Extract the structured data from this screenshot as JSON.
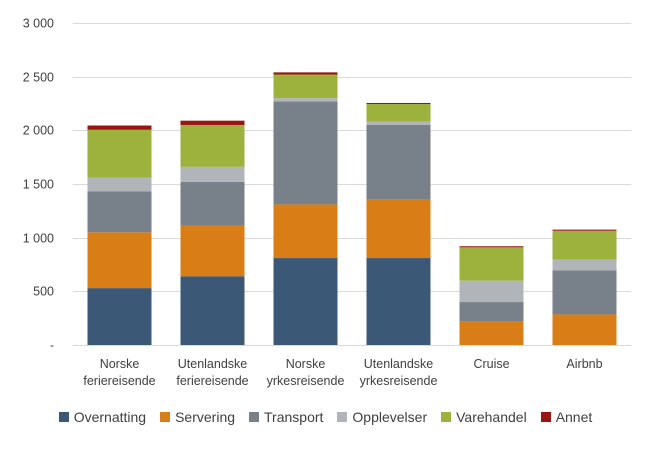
{
  "chart_data": {
    "type": "bar",
    "stacked": true,
    "title": "",
    "xlabel": "",
    "ylabel": "",
    "ylim": [
      0,
      3000
    ],
    "yticks": [
      0,
      500,
      1000,
      1500,
      2000,
      2500,
      3000
    ],
    "ytick_labels": [
      "-",
      "500",
      "1 000",
      "1 500",
      "2 000",
      "2 500",
      "3 000"
    ],
    "grid": true,
    "legend_position": "bottom",
    "categories": [
      [
        "Norske",
        "feriereisende"
      ],
      [
        "Utenlandske",
        "feriereisende"
      ],
      [
        "Norske",
        "yrkesreisende"
      ],
      [
        "Utenlandske",
        "yrkesreisende"
      ],
      [
        "Cruise"
      ],
      [
        "Airbnb"
      ]
    ],
    "series": [
      {
        "name": "Overnatting",
        "color": "#3b5877",
        "values": [
          530,
          640,
          810,
          810,
          0,
          0
        ]
      },
      {
        "name": "Servering",
        "color": "#d97e17",
        "values": [
          520,
          470,
          500,
          550,
          220,
          285
        ]
      },
      {
        "name": "Transport",
        "color": "#788089",
        "values": [
          380,
          410,
          960,
          690,
          180,
          410
        ]
      },
      {
        "name": "Opplevelser",
        "color": "#b1b5b9",
        "values": [
          130,
          140,
          30,
          30,
          200,
          100
        ]
      },
      {
        "name": "Varehandel",
        "color": "#9db23c",
        "values": [
          445,
          390,
          220,
          165,
          310,
          270
        ]
      },
      {
        "name": "Annet",
        "color": "#9a1512",
        "values": [
          40,
          40,
          20,
          10,
          10,
          10
        ]
      }
    ]
  }
}
